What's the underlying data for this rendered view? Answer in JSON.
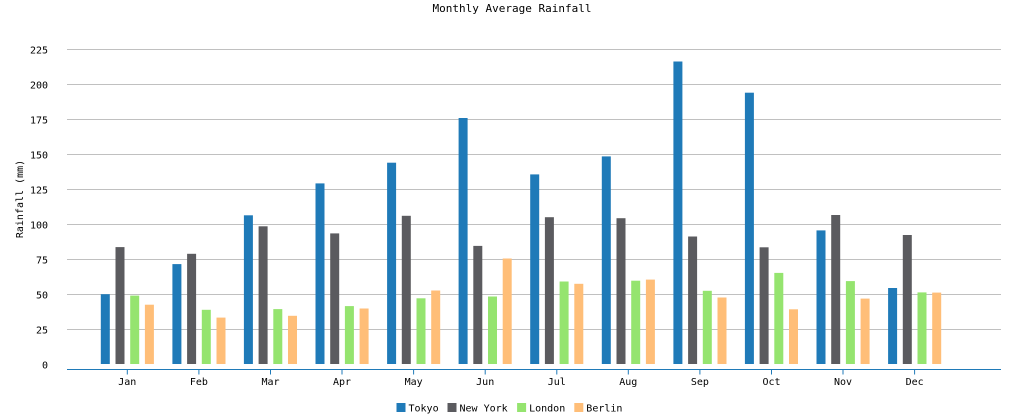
{
  "chart_data": {
    "type": "bar",
    "title": "Monthly Average Rainfall",
    "xlabel": "",
    "ylabel": "Rainfall (mm)",
    "ylim": [
      0,
      237.5
    ],
    "yticks": [
      0,
      25,
      50,
      75,
      100,
      125,
      150,
      175,
      200,
      225
    ],
    "grid": true,
    "legend_position": "bottom-center",
    "categories": [
      "Jan",
      "Feb",
      "Mar",
      "Apr",
      "May",
      "Jun",
      "Jul",
      "Aug",
      "Sep",
      "Oct",
      "Nov",
      "Dec"
    ],
    "series": [
      {
        "name": "Tokyo",
        "color": "#1f7ab8",
        "values": [
          49.9,
          71.5,
          106.4,
          129.2,
          144.0,
          176.0,
          135.6,
          148.5,
          216.4,
          194.1,
          95.6,
          54.4
        ]
      },
      {
        "name": "New York",
        "color": "#5b5b5f",
        "values": [
          83.6,
          78.8,
          98.5,
          93.4,
          106.0,
          84.5,
          105.0,
          104.3,
          91.2,
          83.5,
          106.6,
          92.3
        ]
      },
      {
        "name": "London",
        "color": "#95e46f",
        "values": [
          48.9,
          38.8,
          39.3,
          41.4,
          47.0,
          48.3,
          59.0,
          59.6,
          52.4,
          65.2,
          59.3,
          51.2
        ]
      },
      {
        "name": "Berlin",
        "color": "#ffbe78",
        "values": [
          42.4,
          33.2,
          34.5,
          39.7,
          52.6,
          75.5,
          57.4,
          60.4,
          47.6,
          39.1,
          46.8,
          51.1
        ]
      }
    ]
  }
}
